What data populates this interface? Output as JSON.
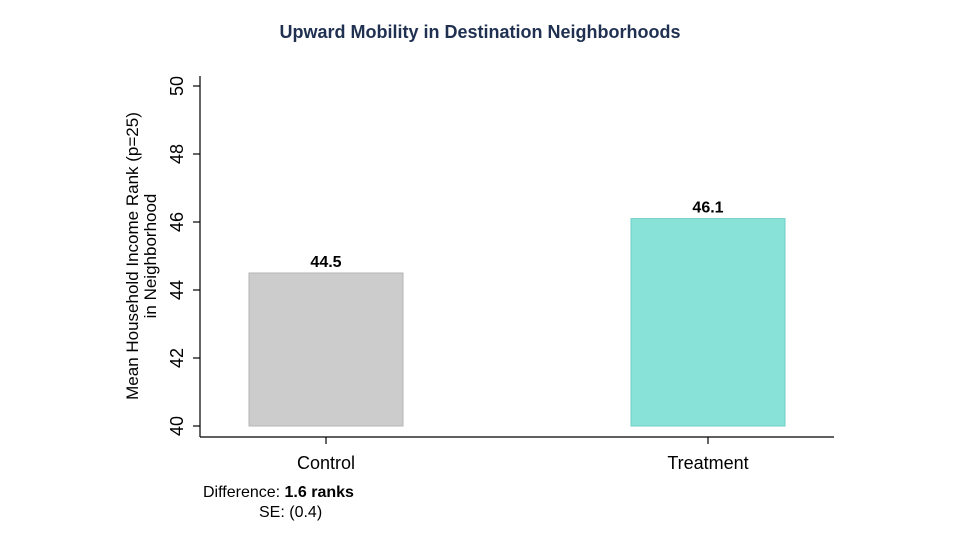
{
  "chart_data": {
    "type": "bar",
    "title": "Upward Mobility in Destination Neighborhoods",
    "ylabel_lines": [
      "Mean Household Income Rank (p=25)",
      "in Neighborhood"
    ],
    "xlabel": "",
    "categories": [
      "Control",
      "Treatment"
    ],
    "values": [
      44.5,
      46.1
    ],
    "data_labels": [
      "44.5",
      "46.1"
    ],
    "colors": [
      "#cccccc",
      "#88e2d8"
    ],
    "bar_stroke_colors": [
      "#b5b5b5",
      "#6fcfc4"
    ],
    "ylim": [
      40,
      50
    ],
    "yticks": [
      40,
      42,
      44,
      46,
      48,
      50
    ],
    "grid": false,
    "legend": "none"
  },
  "notes": {
    "difference_label": "Difference:",
    "difference_value": "1.6 ranks",
    "se_label": "SE:",
    "se_value": "(0.4)"
  }
}
